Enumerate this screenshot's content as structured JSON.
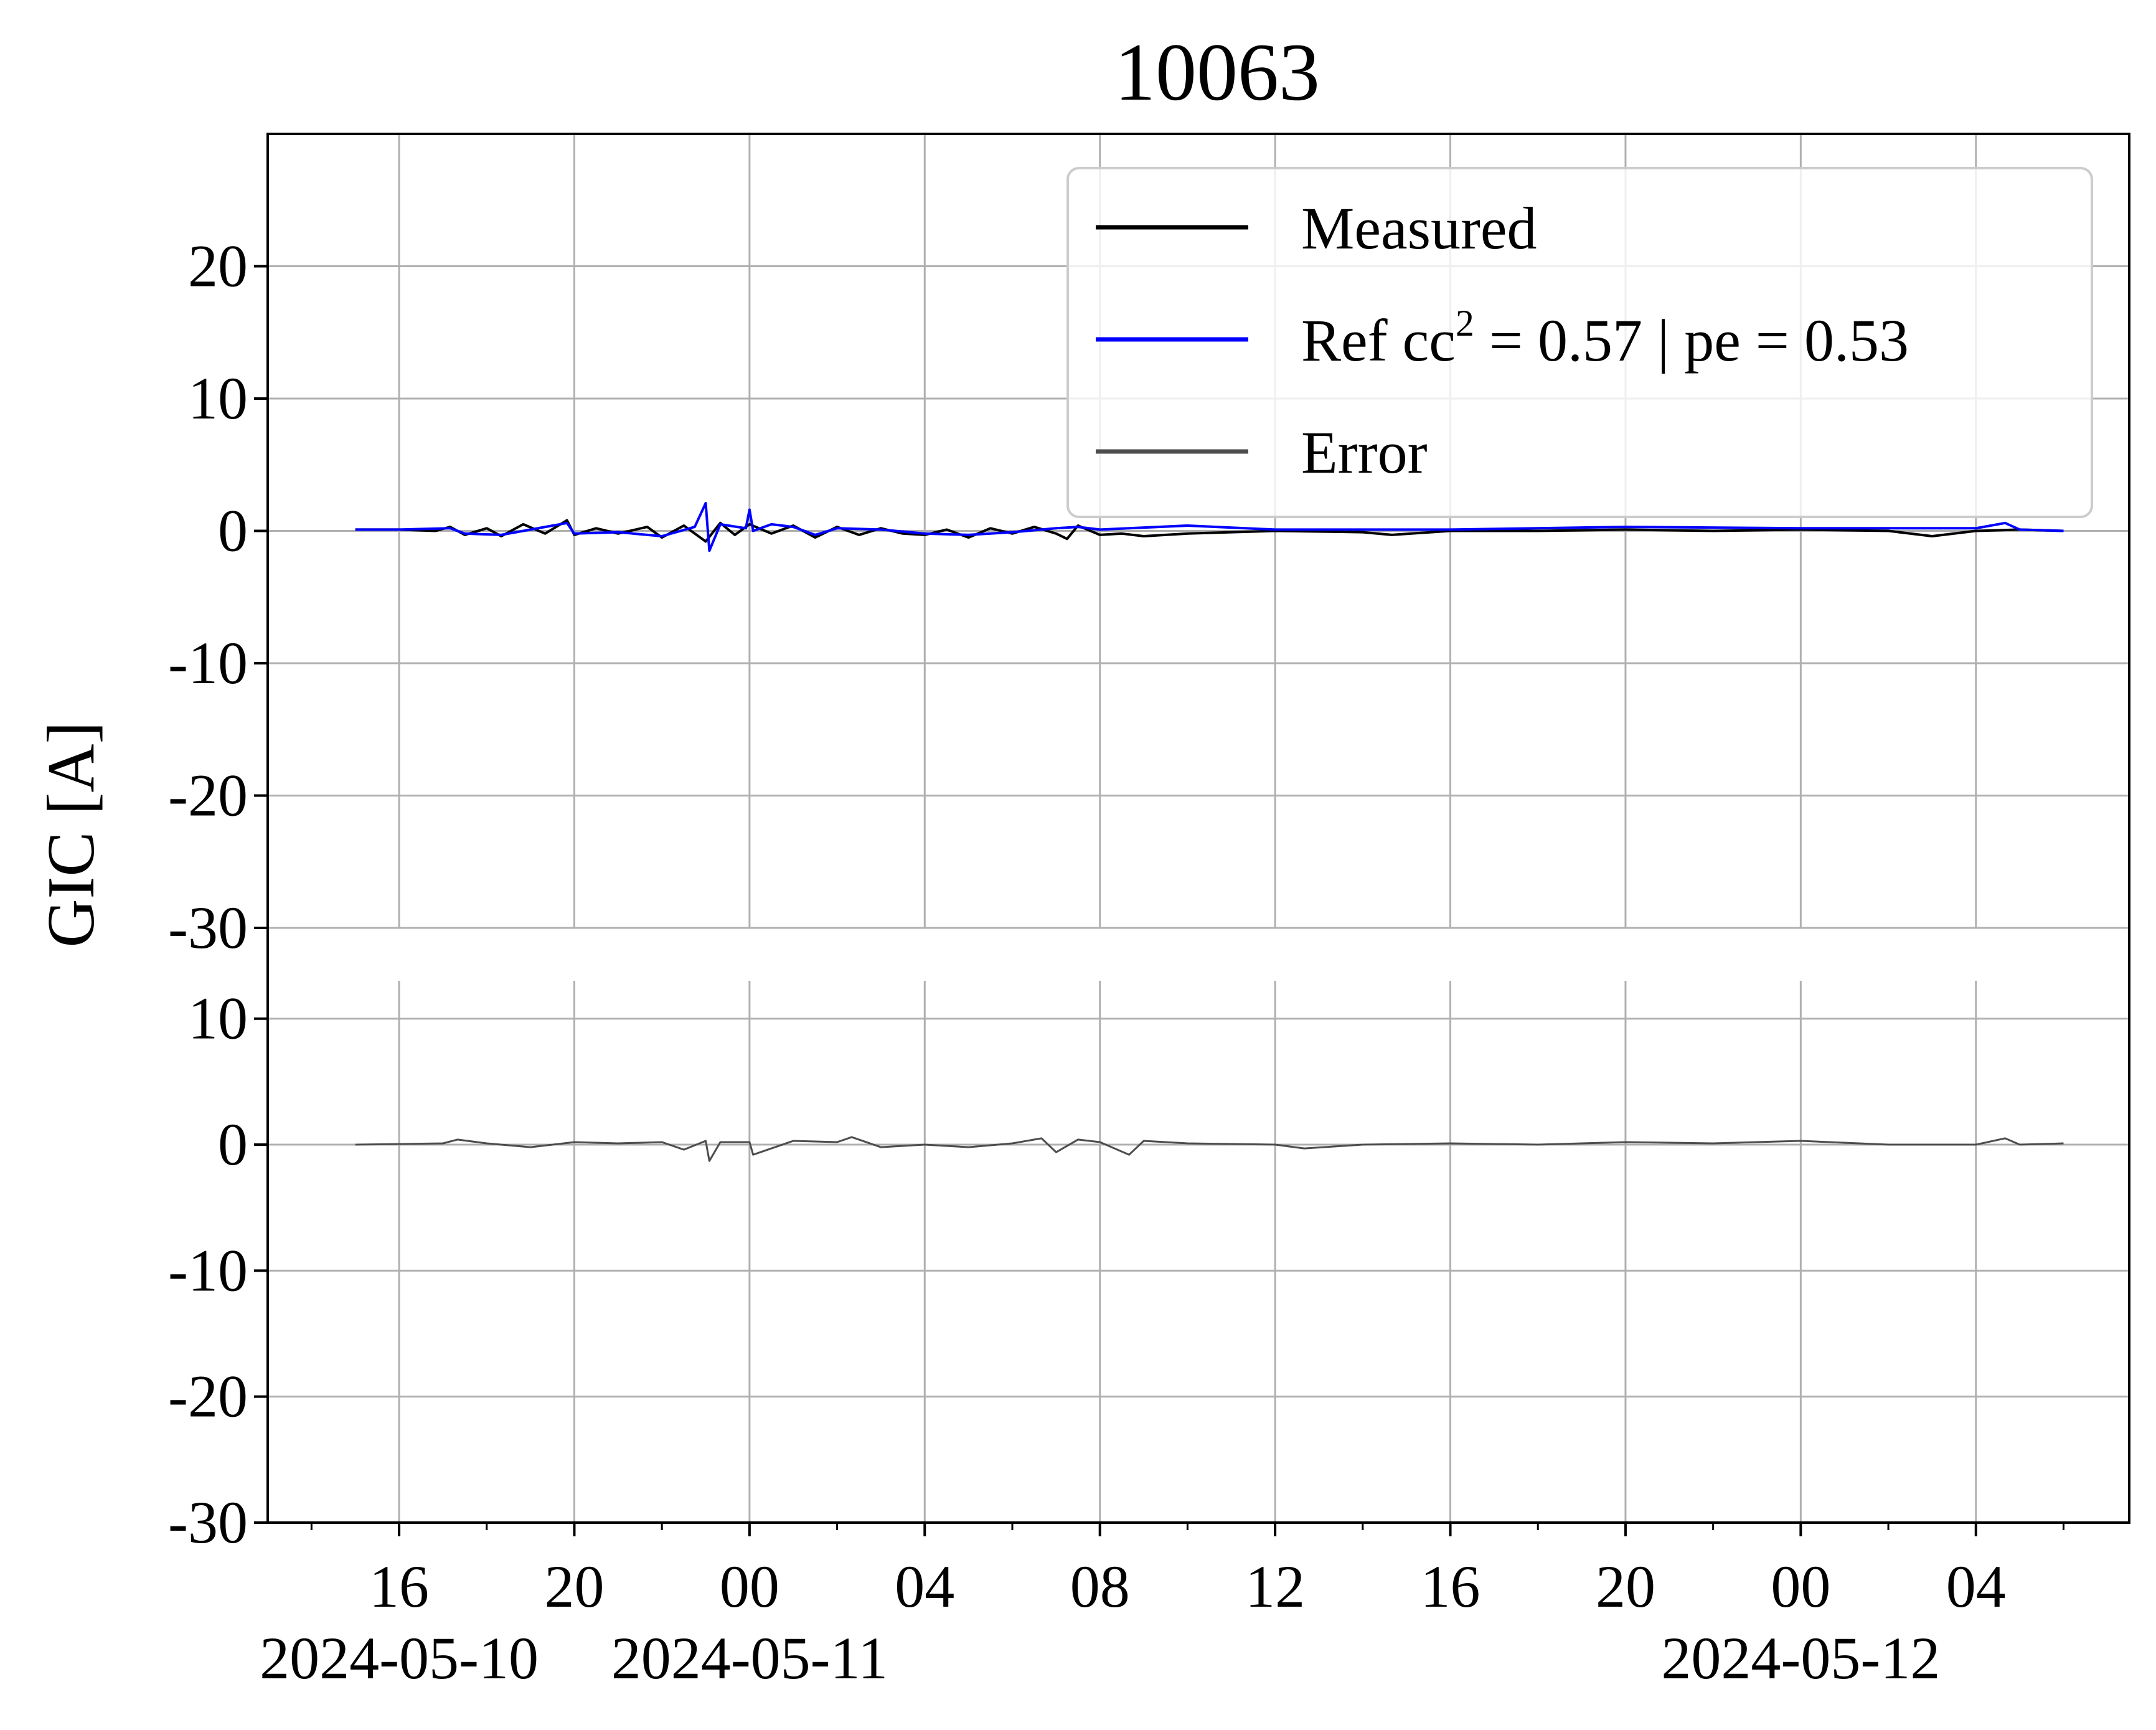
{
  "chart_data": {
    "type": "line",
    "title": "10063",
    "ylabel": "GIC [A]",
    "x_range": [
      "2024-05-10T13:00",
      "2024-05-12T07:30"
    ],
    "x_ticks": [
      {
        "t": "2024-05-10T16:00",
        "label": "16",
        "date": "2024-05-10"
      },
      {
        "t": "2024-05-10T20:00",
        "label": "20",
        "date": ""
      },
      {
        "t": "2024-05-11T00:00",
        "label": "00",
        "date": "2024-05-11"
      },
      {
        "t": "2024-05-11T04:00",
        "label": "04",
        "date": ""
      },
      {
        "t": "2024-05-11T08:00",
        "label": "08",
        "date": ""
      },
      {
        "t": "2024-05-11T12:00",
        "label": "12",
        "date": ""
      },
      {
        "t": "2024-05-11T16:00",
        "label": "16",
        "date": ""
      },
      {
        "t": "2024-05-11T20:00",
        "label": "20",
        "date": ""
      },
      {
        "t": "2024-05-12T00:00",
        "label": "00",
        "date": "2024-05-12"
      },
      {
        "t": "2024-05-12T04:00",
        "label": "04",
        "date": ""
      }
    ],
    "grid": true,
    "legend": {
      "position": "upper-right",
      "entries": [
        {
          "label": "Measured",
          "color": "#000000"
        },
        {
          "label_prefix": "Ref  cc",
          "label_sup": "2",
          "label_suffix": " = 0.57 | pe = 0.53",
          "color": "#0000ff"
        },
        {
          "label": "Error",
          "color": "#4d4d4d"
        }
      ]
    },
    "panels": [
      {
        "name": "top",
        "ylim": [
          -30,
          30
        ],
        "yticks": [
          20,
          10,
          0,
          -10,
          -20,
          -30
        ],
        "series": [
          {
            "name": "Measured",
            "color": "#000000",
            "points": [
              [
                "2024-05-10T15:00",
                0.1
              ],
              [
                "2024-05-10T16:00",
                0.1
              ],
              [
                "2024-05-10T16:50",
                0.0
              ],
              [
                "2024-05-10T17:10",
                0.3
              ],
              [
                "2024-05-10T17:30",
                -0.3
              ],
              [
                "2024-05-10T18:00",
                0.2
              ],
              [
                "2024-05-10T18:20",
                -0.4
              ],
              [
                "2024-05-10T18:50",
                0.5
              ],
              [
                "2024-05-10T19:20",
                -0.2
              ],
              [
                "2024-05-10T19:50",
                0.8
              ],
              [
                "2024-05-10T20:00",
                -0.3
              ],
              [
                "2024-05-10T20:30",
                0.2
              ],
              [
                "2024-05-10T21:00",
                -0.2
              ],
              [
                "2024-05-10T21:40",
                0.3
              ],
              [
                "2024-05-10T22:00",
                -0.5
              ],
              [
                "2024-05-10T22:30",
                0.4
              ],
              [
                "2024-05-10T23:00",
                -0.8
              ],
              [
                "2024-05-10T23:20",
                0.6
              ],
              [
                "2024-05-10T23:40",
                -0.3
              ],
              [
                "2024-05-11T00:00",
                0.5
              ],
              [
                "2024-05-11T00:30",
                -0.2
              ],
              [
                "2024-05-11T01:00",
                0.4
              ],
              [
                "2024-05-11T01:30",
                -0.5
              ],
              [
                "2024-05-11T02:00",
                0.3
              ],
              [
                "2024-05-11T02:30",
                -0.3
              ],
              [
                "2024-05-11T03:00",
                0.2
              ],
              [
                "2024-05-11T03:30",
                -0.2
              ],
              [
                "2024-05-11T04:00",
                -0.3
              ],
              [
                "2024-05-11T04:30",
                0.1
              ],
              [
                "2024-05-11T05:00",
                -0.5
              ],
              [
                "2024-05-11T05:30",
                0.2
              ],
              [
                "2024-05-11T06:00",
                -0.2
              ],
              [
                "2024-05-11T06:30",
                0.3
              ],
              [
                "2024-05-11T07:00",
                -0.2
              ],
              [
                "2024-05-11T07:15",
                -0.6
              ],
              [
                "2024-05-11T07:30",
                0.4
              ],
              [
                "2024-05-11T08:00",
                -0.3
              ],
              [
                "2024-05-11T08:30",
                -0.2
              ],
              [
                "2024-05-11T09:00",
                -0.4
              ],
              [
                "2024-05-11T10:00",
                -0.2
              ],
              [
                "2024-05-11T11:00",
                -0.1
              ],
              [
                "2024-05-11T12:00",
                0.0
              ],
              [
                "2024-05-11T14:00",
                -0.1
              ],
              [
                "2024-05-11T14:40",
                -0.3
              ],
              [
                "2024-05-11T16:00",
                0.0
              ],
              [
                "2024-05-11T18:00",
                0.0
              ],
              [
                "2024-05-11T20:00",
                0.1
              ],
              [
                "2024-05-11T22:00",
                0.0
              ],
              [
                "2024-05-12T00:00",
                0.1
              ],
              [
                "2024-05-12T02:00",
                0.0
              ],
              [
                "2024-05-12T03:00",
                -0.4
              ],
              [
                "2024-05-12T04:00",
                0.0
              ],
              [
                "2024-05-12T05:00",
                0.1
              ],
              [
                "2024-05-12T06:00",
                0.0
              ]
            ]
          },
          {
            "name": "Ref",
            "color": "#0000ff",
            "points": [
              [
                "2024-05-10T15:00",
                0.1
              ],
              [
                "2024-05-10T16:00",
                0.1
              ],
              [
                "2024-05-10T17:10",
                0.2
              ],
              [
                "2024-05-10T17:30",
                -0.2
              ],
              [
                "2024-05-10T18:20",
                -0.3
              ],
              [
                "2024-05-10T19:50",
                0.6
              ],
              [
                "2024-05-10T20:00",
                -0.2
              ],
              [
                "2024-05-10T21:00",
                -0.1
              ],
              [
                "2024-05-10T22:00",
                -0.4
              ],
              [
                "2024-05-10T22:45",
                0.3
              ],
              [
                "2024-05-10T23:00",
                2.1
              ],
              [
                "2024-05-10T23:05",
                -1.5
              ],
              [
                "2024-05-10T23:20",
                0.5
              ],
              [
                "2024-05-10T23:55",
                0.2
              ],
              [
                "2024-05-11T00:00",
                1.6
              ],
              [
                "2024-05-11T00:05",
                0.0
              ],
              [
                "2024-05-11T00:30",
                0.5
              ],
              [
                "2024-05-11T01:00",
                0.3
              ],
              [
                "2024-05-11T01:30",
                -0.3
              ],
              [
                "2024-05-11T02:00",
                0.2
              ],
              [
                "2024-05-11T03:00",
                0.1
              ],
              [
                "2024-05-11T04:00",
                -0.2
              ],
              [
                "2024-05-11T05:00",
                -0.3
              ],
              [
                "2024-05-11T06:00",
                -0.1
              ],
              [
                "2024-05-11T07:00",
                0.2
              ],
              [
                "2024-05-11T07:30",
                0.3
              ],
              [
                "2024-05-11T08:00",
                0.1
              ],
              [
                "2024-05-11T10:00",
                0.4
              ],
              [
                "2024-05-11T12:00",
                0.1
              ],
              [
                "2024-05-11T16:00",
                0.1
              ],
              [
                "2024-05-11T20:00",
                0.3
              ],
              [
                "2024-05-12T00:00",
                0.2
              ],
              [
                "2024-05-12T04:00",
                0.2
              ],
              [
                "2024-05-12T04:40",
                0.6
              ],
              [
                "2024-05-12T05:00",
                0.1
              ],
              [
                "2024-05-12T06:00",
                0.0
              ]
            ]
          }
        ]
      },
      {
        "name": "bottom",
        "ylim": [
          -30,
          13
        ],
        "yticks": [
          10,
          0,
          -10,
          -20,
          -30
        ],
        "series": [
          {
            "name": "Error",
            "color": "#4d4d4d",
            "points": [
              [
                "2024-05-10T15:00",
                0.0
              ],
              [
                "2024-05-10T17:00",
                0.1
              ],
              [
                "2024-05-10T17:20",
                0.4
              ],
              [
                "2024-05-10T18:00",
                0.1
              ],
              [
                "2024-05-10T19:00",
                -0.2
              ],
              [
                "2024-05-10T20:00",
                0.2
              ],
              [
                "2024-05-10T21:00",
                0.1
              ],
              [
                "2024-05-10T22:00",
                0.2
              ],
              [
                "2024-05-10T22:30",
                -0.4
              ],
              [
                "2024-05-10T23:00",
                0.3
              ],
              [
                "2024-05-10T23:05",
                -1.3
              ],
              [
                "2024-05-10T23:20",
                0.2
              ],
              [
                "2024-05-11T00:00",
                0.2
              ],
              [
                "2024-05-11T00:05",
                -0.8
              ],
              [
                "2024-05-11T01:00",
                0.3
              ],
              [
                "2024-05-11T02:00",
                0.2
              ],
              [
                "2024-05-11T02:20",
                0.6
              ],
              [
                "2024-05-11T03:00",
                -0.2
              ],
              [
                "2024-05-11T04:00",
                0.0
              ],
              [
                "2024-05-11T05:00",
                -0.2
              ],
              [
                "2024-05-11T06:00",
                0.1
              ],
              [
                "2024-05-11T06:40",
                0.5
              ],
              [
                "2024-05-11T07:00",
                -0.6
              ],
              [
                "2024-05-11T07:30",
                0.4
              ],
              [
                "2024-05-11T08:00",
                0.2
              ],
              [
                "2024-05-11T08:40",
                -0.8
              ],
              [
                "2024-05-11T09:00",
                0.3
              ],
              [
                "2024-05-11T10:00",
                0.1
              ],
              [
                "2024-05-11T12:00",
                0.0
              ],
              [
                "2024-05-11T12:40",
                -0.3
              ],
              [
                "2024-05-11T14:00",
                0.0
              ],
              [
                "2024-05-11T16:00",
                0.1
              ],
              [
                "2024-05-11T18:00",
                0.0
              ],
              [
                "2024-05-11T20:00",
                0.2
              ],
              [
                "2024-05-11T22:00",
                0.1
              ],
              [
                "2024-05-12T00:00",
                0.3
              ],
              [
                "2024-05-12T02:00",
                0.0
              ],
              [
                "2024-05-12T04:00",
                0.0
              ],
              [
                "2024-05-12T04:40",
                0.5
              ],
              [
                "2024-05-12T05:00",
                0.0
              ],
              [
                "2024-05-12T06:00",
                0.1
              ]
            ]
          }
        ]
      }
    ]
  }
}
